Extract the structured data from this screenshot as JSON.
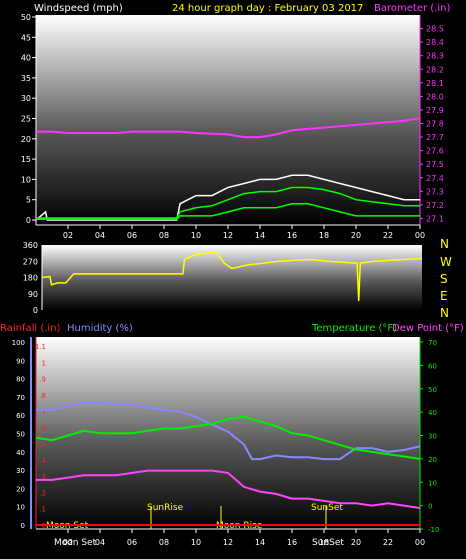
{
  "colors": {
    "background": "#000000",
    "windspeed": "#ffffff",
    "wind_avg": "#00ff00",
    "wind_min": "#00ff00",
    "barometer": "#ff33ff",
    "direction": "#ffff00",
    "rainfall": "#ff0000",
    "humidity": "#8888ff",
    "temperature": "#00ee00",
    "dewpoint": "#ff44ff",
    "sun_moon": "#ffff00"
  },
  "header": {
    "left_label": "Windspeed (mph)",
    "title": "24 hour graph day : February 03 2017",
    "right_label": "Barometer (.in)"
  },
  "compass": {
    "labels": [
      "N",
      "W",
      "S",
      "E",
      "N"
    ]
  },
  "lower_header": {
    "rainfall_label": "Rainfall (.in)",
    "humidity_label": "Humidity (%)",
    "temperature_label": "Temperature (°F)",
    "dewpoint_label": "Dew Point (°F)"
  },
  "events": {
    "moon_set": "Moon Set",
    "moon_set_axis": "Moon Set",
    "sunrise": "SunRise",
    "moon_rise": "Moon Rise",
    "sunset": "SunSet",
    "sunset_axis": "SunSet"
  },
  "chart_data": [
    {
      "type": "line",
      "name": "windspeed-barometer",
      "x_ticks": [
        "02",
        "04",
        "06",
        "08",
        "10",
        "12",
        "14",
        "16",
        "18",
        "20",
        "22",
        "00"
      ],
      "y_left": {
        "label": "Windspeed (mph)",
        "ylim": [
          0,
          50
        ],
        "ticks": [
          0,
          5,
          10,
          15,
          20,
          25,
          30,
          35,
          40,
          45,
          50
        ]
      },
      "y_right": {
        "label": "Barometer (.in)",
        "ylim": [
          27.0,
          28.6
        ],
        "ticks": [
          27.1,
          27.2,
          27.3,
          27.4,
          27.5,
          27.6,
          27.7,
          27.8,
          27.9,
          28.0,
          28.1,
          28.2,
          28.3,
          28.4,
          28.5
        ]
      },
      "series": [
        {
          "name": "Windspeed",
          "axis": "left",
          "x": [
            0,
            0.6,
            0.7,
            8.8,
            9,
            10,
            11,
            12,
            13,
            14,
            15,
            16,
            17,
            18,
            19,
            20,
            21,
            22,
            23,
            24
          ],
          "values": [
            0,
            2,
            0,
            0,
            4,
            6,
            6,
            8,
            9,
            10,
            10,
            11,
            11,
            10,
            9,
            8,
            7,
            6,
            5,
            5
          ]
        },
        {
          "name": "Wind average",
          "axis": "left",
          "x": [
            0,
            8.8,
            9,
            10,
            11,
            12,
            13,
            14,
            15,
            16,
            17,
            18,
            19,
            20,
            21,
            22,
            23,
            24
          ],
          "values": [
            0.5,
            0.5,
            2,
            3,
            3.5,
            5,
            6.5,
            7,
            7,
            8,
            8,
            7.5,
            6.5,
            5,
            4.5,
            4,
            3.5,
            3.5
          ]
        },
        {
          "name": "Wind minimum",
          "axis": "left",
          "x": [
            0,
            8.8,
            9,
            10,
            11,
            12,
            13,
            14,
            15,
            16,
            17,
            18,
            19,
            20,
            21,
            22,
            23,
            24
          ],
          "values": [
            0.2,
            0.2,
            1,
            1,
            1,
            2,
            3,
            3,
            3,
            4,
            4,
            3,
            2,
            1,
            1,
            1,
            1,
            1
          ]
        },
        {
          "name": "Barometer",
          "axis": "right",
          "x": [
            0,
            1,
            2,
            5,
            6,
            9,
            10,
            12,
            13,
            14,
            15,
            16,
            17,
            18,
            19,
            20,
            21,
            22,
            23,
            24
          ],
          "values": [
            27.74,
            27.74,
            27.73,
            27.73,
            27.74,
            27.74,
            27.73,
            27.72,
            27.7,
            27.7,
            27.72,
            27.75,
            27.76,
            27.77,
            27.78,
            27.79,
            27.8,
            27.81,
            27.82,
            27.84
          ]
        }
      ]
    },
    {
      "type": "line",
      "name": "wind-direction",
      "ylim": [
        0,
        360
      ],
      "ticks": [
        0,
        90,
        180,
        270,
        360
      ],
      "series": [
        {
          "name": "Wind direction",
          "x": [
            0,
            0.5,
            0.6,
            1,
            1.5,
            2,
            4,
            6,
            8,
            8.9,
            9,
            9.5,
            10,
            11,
            11.5,
            12,
            13,
            14,
            15,
            16,
            17,
            18,
            19,
            19.9,
            20,
            20.1,
            21,
            22,
            23,
            24
          ],
          "values": [
            180,
            185,
            140,
            150,
            150,
            200,
            200,
            200,
            200,
            200,
            280,
            300,
            310,
            320,
            260,
            230,
            250,
            260,
            270,
            275,
            280,
            270,
            265,
            260,
            50,
            260,
            270,
            275,
            280,
            285
          ]
        }
      ]
    },
    {
      "type": "line",
      "name": "rain-humidity-temperature",
      "x_ticks": [
        "02",
        "04",
        "06",
        "08",
        "10",
        "12",
        "14",
        "16",
        "18",
        "20",
        "22",
        "00"
      ],
      "y_left_rain": {
        "label": "Rainfall (.in)",
        "ylim": [
          0,
          1.15
        ],
        "ticks": [
          0,
          0.1,
          0.2,
          0.3,
          0.4,
          0.5,
          0.6,
          0.7,
          0.8,
          0.9,
          1,
          1.1
        ]
      },
      "y_left_humidity": {
        "label": "Humidity (%)",
        "ylim": [
          0,
          100
        ],
        "ticks": [
          0,
          10,
          20,
          30,
          40,
          50,
          60,
          70,
          80,
          90,
          100
        ]
      },
      "y_right": {
        "label": "Temperature (°F)",
        "ylim": [
          -10,
          70
        ],
        "ticks": [
          -10,
          0,
          10,
          20,
          30,
          40,
          50,
          60,
          70
        ]
      },
      "series": [
        {
          "name": "Rainfall",
          "axis": "rain",
          "x": [
            0,
            24
          ],
          "values": [
            0,
            0
          ]
        },
        {
          "name": "Humidity",
          "axis": "humidity",
          "x": [
            0,
            1,
            2,
            3,
            4,
            5,
            6,
            7,
            8,
            9,
            10,
            11,
            12,
            13,
            13.5,
            14,
            15,
            16,
            17,
            18,
            19,
            20,
            21,
            22,
            23,
            24
          ],
          "values": [
            63,
            63,
            65,
            67,
            67,
            66,
            66,
            64,
            63,
            62,
            59,
            55,
            51,
            44,
            36,
            36,
            38,
            37,
            37,
            36,
            36,
            42,
            42,
            40,
            41,
            43
          ]
        },
        {
          "name": "Temperature",
          "axis": "right",
          "x": [
            0,
            1,
            2,
            3,
            4,
            5,
            6,
            7,
            8,
            9,
            10,
            11,
            12,
            13,
            14,
            15,
            16,
            17,
            18,
            19,
            20,
            21,
            22,
            23,
            24
          ],
          "values": [
            29,
            28,
            30,
            32,
            31,
            31,
            31,
            32,
            33,
            33,
            34,
            35,
            37,
            38,
            36,
            34,
            31,
            30,
            28,
            26,
            24,
            23,
            22,
            21,
            20
          ]
        },
        {
          "name": "Dew Point",
          "axis": "right",
          "x": [
            0,
            1,
            2,
            3,
            4,
            5,
            6,
            7,
            8,
            9,
            10,
            11,
            12,
            13,
            14,
            15,
            16,
            17,
            18,
            19,
            20,
            21,
            22,
            23,
            24
          ],
          "values": [
            11,
            11,
            12,
            13,
            13,
            13,
            14,
            15,
            15,
            15,
            15,
            15,
            14,
            8,
            6,
            5,
            3,
            3,
            2,
            1,
            1,
            0,
            1,
            0,
            -1
          ]
        }
      ]
    }
  ]
}
